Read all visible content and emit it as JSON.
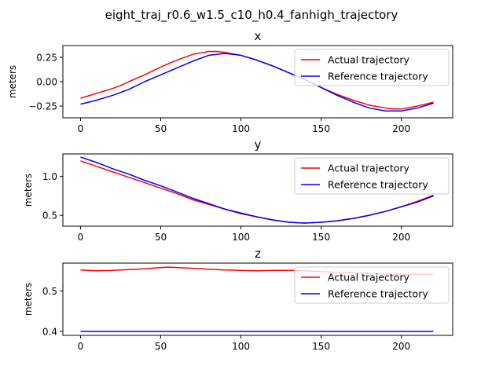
{
  "figure": {
    "title": "eight_traj_r0.6_w1.5_c10_h0.4_fanhigh_trajectory"
  },
  "chart_data": [
    {
      "type": "line",
      "title": "x",
      "xlabel": "",
      "ylabel": "meters",
      "xlim": [
        -11,
        232
      ],
      "ylim": [
        -0.37,
        0.37
      ],
      "xticks": [
        0,
        50,
        100,
        150,
        200
      ],
      "yticks": [
        -0.25,
        0.0,
        0.25
      ],
      "ytick_labels": [
        "−0.25",
        "0.00",
        "0.25"
      ],
      "legend_position": "upper-right",
      "series": [
        {
          "name": "Actual trajectory",
          "color": "#ff0000",
          "x": [
            0,
            10,
            20,
            25,
            30,
            40,
            50,
            60,
            70,
            80,
            85,
            90,
            100,
            110,
            120,
            130,
            140,
            150,
            160,
            170,
            180,
            190,
            195,
            200,
            210,
            220
          ],
          "y": [
            -0.17,
            -0.12,
            -0.07,
            -0.04,
            0.0,
            0.07,
            0.15,
            0.22,
            0.28,
            0.31,
            0.31,
            0.3,
            0.27,
            0.22,
            0.16,
            0.09,
            0.02,
            -0.06,
            -0.13,
            -0.19,
            -0.24,
            -0.27,
            -0.28,
            -0.28,
            -0.25,
            -0.21
          ]
        },
        {
          "name": "Reference trajectory",
          "color": "#0000ff",
          "x": [
            0,
            10,
            20,
            30,
            40,
            50,
            60,
            70,
            80,
            90,
            100,
            110,
            120,
            130,
            140,
            150,
            160,
            170,
            180,
            190,
            200,
            210,
            220
          ],
          "y": [
            -0.23,
            -0.19,
            -0.14,
            -0.08,
            0.0,
            0.07,
            0.14,
            0.21,
            0.27,
            0.29,
            0.27,
            0.22,
            0.16,
            0.09,
            0.02,
            -0.06,
            -0.14,
            -0.21,
            -0.27,
            -0.3,
            -0.3,
            -0.27,
            -0.22
          ]
        }
      ]
    },
    {
      "type": "line",
      "title": "y",
      "xlabel": "",
      "ylabel": "meters",
      "xlim": [
        -11,
        232
      ],
      "ylim": [
        0.36,
        1.29
      ],
      "xticks": [
        0,
        50,
        100,
        150,
        200
      ],
      "yticks": [
        0.5,
        1.0
      ],
      "ytick_labels": [
        "0.5",
        "1.0"
      ],
      "legend_position": "upper-right",
      "series": [
        {
          "name": "Actual trajectory",
          "color": "#ff0000",
          "x": [
            0,
            10,
            20,
            30,
            40,
            50,
            60,
            70,
            80,
            90,
            100,
            110,
            120,
            130,
            140,
            150,
            160,
            170,
            180,
            190,
            200,
            210,
            220
          ],
          "y": [
            1.2,
            1.13,
            1.06,
            0.99,
            0.92,
            0.85,
            0.78,
            0.7,
            0.64,
            0.58,
            0.52,
            0.48,
            0.44,
            0.41,
            0.4,
            0.41,
            0.43,
            0.46,
            0.5,
            0.55,
            0.61,
            0.68,
            0.76
          ]
        },
        {
          "name": "Reference trajectory",
          "color": "#0000ff",
          "x": [
            0,
            10,
            20,
            30,
            40,
            50,
            60,
            70,
            80,
            90,
            100,
            110,
            120,
            130,
            140,
            150,
            160,
            170,
            180,
            190,
            200,
            210,
            220
          ],
          "y": [
            1.25,
            1.18,
            1.1,
            1.03,
            0.95,
            0.88,
            0.8,
            0.72,
            0.65,
            0.58,
            0.53,
            0.48,
            0.44,
            0.41,
            0.4,
            0.41,
            0.43,
            0.46,
            0.5,
            0.55,
            0.61,
            0.67,
            0.75
          ]
        }
      ]
    },
    {
      "type": "line",
      "title": "z",
      "xlabel": "",
      "ylabel": "meters",
      "xlim": [
        -11,
        232
      ],
      "ylim": [
        0.39,
        0.569
      ],
      "xticks": [
        0,
        50,
        100,
        150,
        200
      ],
      "yticks": [
        0.4,
        0.5
      ],
      "ytick_labels": [
        "0.4",
        "0.5"
      ],
      "legend_position": "upper-right",
      "series": [
        {
          "name": "Actual trajectory",
          "color": "#ff0000",
          "x": [
            0,
            10,
            20,
            30,
            40,
            50,
            55,
            60,
            70,
            80,
            90,
            100,
            110,
            120,
            130,
            140,
            150,
            160,
            170,
            180,
            190,
            200,
            210,
            220
          ],
          "y": [
            0.552,
            0.55,
            0.551,
            0.553,
            0.555,
            0.558,
            0.559,
            0.558,
            0.556,
            0.554,
            0.552,
            0.551,
            0.55,
            0.551,
            0.551,
            0.55,
            0.548,
            0.546,
            0.545,
            0.543,
            0.542,
            0.541,
            0.541,
            0.541
          ]
        },
        {
          "name": "Reference trajectory",
          "color": "#0000ff",
          "x": [
            0,
            220
          ],
          "y": [
            0.4,
            0.4
          ]
        }
      ]
    }
  ]
}
